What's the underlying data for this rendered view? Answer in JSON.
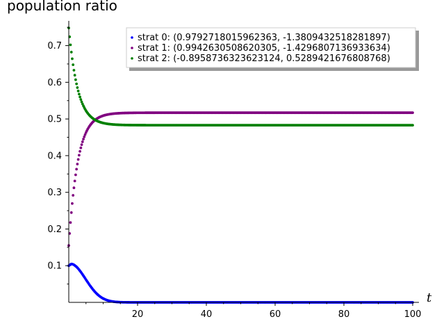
{
  "title": "population ratio",
  "chart_data": {
    "type": "scatter",
    "title": "population ratio",
    "xlabel": "t",
    "ylabel": "",
    "xlim": [
      0,
      100
    ],
    "ylim": [
      0,
      0.76
    ],
    "x_ticks": [
      20,
      40,
      60,
      80,
      100
    ],
    "y_ticks": [
      0.1,
      0.2,
      0.3,
      0.4,
      0.5,
      0.6,
      0.7
    ],
    "grid": false,
    "legend_position": "top-right",
    "series": [
      {
        "name": "strat 0: (0.9792718015962363, -1.3809432518281897)",
        "color": "#0000ff",
        "model": {
          "type": "hump",
          "start": 0.1,
          "end": 0.0,
          "peak": 0.105,
          "peak_t": 0.8,
          "rate": 0.45
        }
      },
      {
        "name": "strat 1: (0.9942630508620305, -1.4296807136933634)",
        "color": "#800080",
        "model": {
          "type": "exp",
          "start": 0.155,
          "end": 0.517,
          "rate": 0.38
        }
      },
      {
        "name": "strat 2: (-0.8958736323623124, 0.5289421676808768)",
        "color": "#008000",
        "model": {
          "type": "exp",
          "start": 0.748,
          "end": 0.483,
          "rate": 0.38
        }
      }
    ]
  }
}
